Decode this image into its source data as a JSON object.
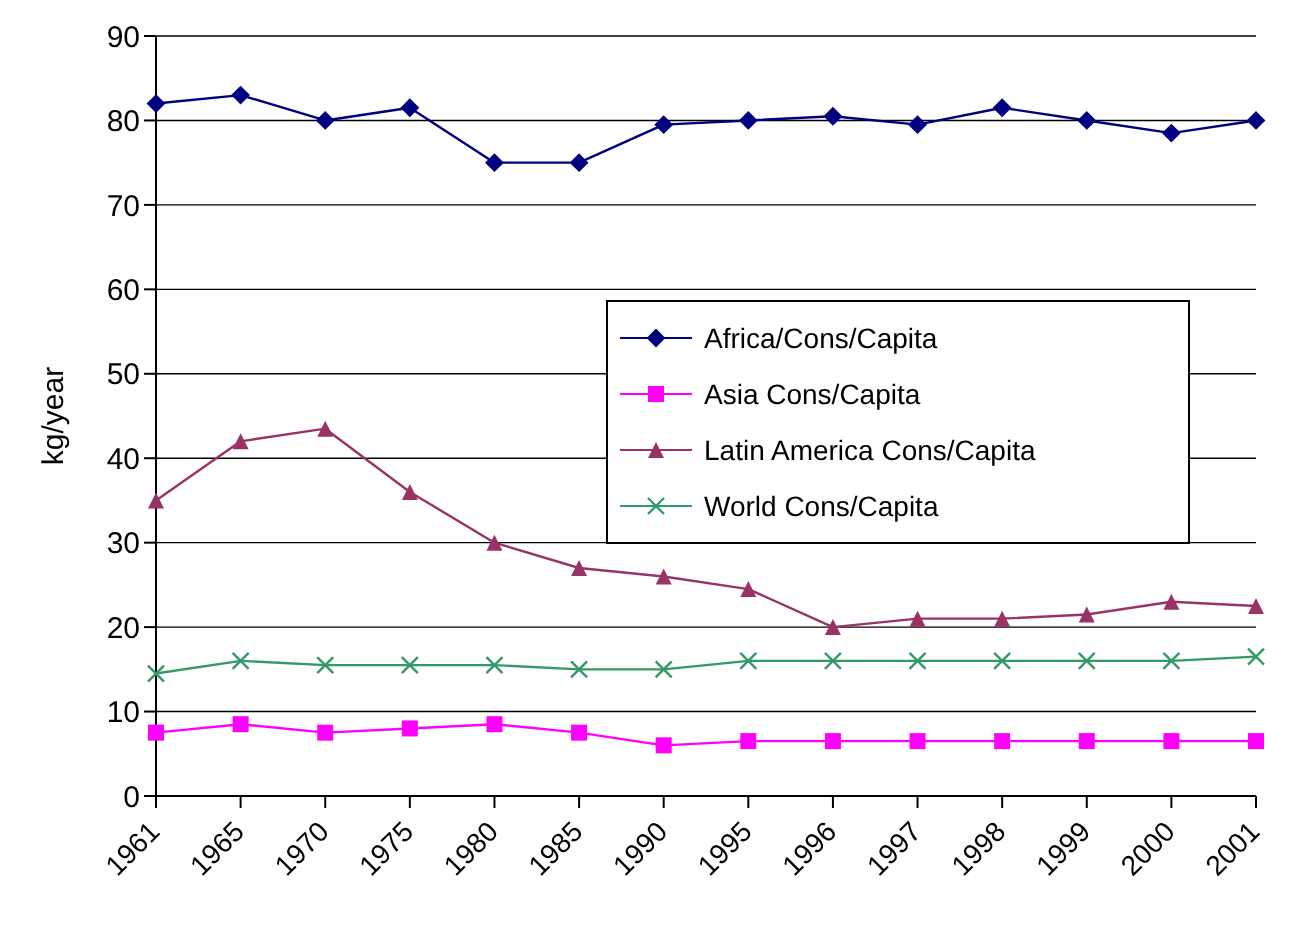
{
  "chart_data": {
    "type": "line",
    "ylabel": "kg/year",
    "categories": [
      "1961",
      "1965",
      "1970",
      "1975",
      "1980",
      "1985",
      "1990",
      "1995",
      "1996",
      "1997",
      "1998",
      "1999",
      "2000",
      "2001"
    ],
    "series": [
      {
        "name": "Africa/Cons/Capita",
        "color": "#000080",
        "marker": "diamond",
        "values": [
          82,
          83,
          80,
          81.5,
          75,
          75,
          79.5,
          80,
          80.5,
          79.5,
          81.5,
          80,
          78.5,
          80
        ]
      },
      {
        "name": "Asia Cons/Capita",
        "color": "#ff00ff",
        "marker": "square",
        "values": [
          7.5,
          8.5,
          7.5,
          8,
          8.5,
          7.5,
          6,
          6.5,
          6.5,
          6.5,
          6.5,
          6.5,
          6.5,
          6.5
        ]
      },
      {
        "name": "Latin America Cons/Capita",
        "color": "#993366",
        "marker": "triangle",
        "values": [
          35,
          42,
          43.5,
          36,
          30,
          27,
          26,
          24.5,
          20,
          21,
          21,
          21.5,
          23,
          22.5
        ]
      },
      {
        "name": "World Cons/Capita",
        "color": "#339966",
        "marker": "cross",
        "values": [
          14.5,
          16,
          15.5,
          15.5,
          15.5,
          15,
          15,
          16,
          16,
          16,
          16,
          16,
          16,
          16.5
        ]
      }
    ],
    "ylim": [
      0,
      90
    ],
    "yticks": [
      0,
      10,
      20,
      30,
      40,
      50,
      60,
      70,
      80,
      90
    ],
    "grid": "y",
    "legend": "center"
  }
}
